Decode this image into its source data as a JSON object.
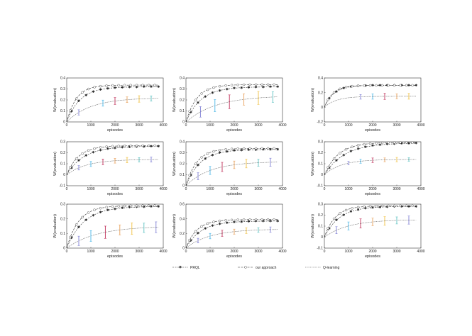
{
  "legend": {
    "items": [
      {
        "label": "PRQL",
        "marker": "star",
        "dash": "2,1.5"
      },
      {
        "label": "our approach",
        "marker": "circle",
        "dash": "3,1.5"
      },
      {
        "label": "Q-learning",
        "marker": "none",
        "dash": "0.8,1"
      }
    ]
  },
  "error_colors": [
    "#7f7fd4",
    "#4bb7e6",
    "#c0305a",
    "#e8a05a",
    "#f0c040",
    "#5ac0c0"
  ],
  "chart_data": [
    {
      "type": "line",
      "xlabel": "episodes",
      "ylabel": "W(evaluation)",
      "xlim": [
        0,
        4000
      ],
      "ylim": [
        0,
        0.4
      ],
      "xticks": [
        0,
        1000,
        2000,
        3000,
        4000
      ],
      "yticks": [
        0,
        0.1,
        0.2,
        0.3,
        0.4
      ],
      "ytick_labels": [
        "0",
        "0.1",
        "0.2",
        "0.3",
        "0.4"
      ],
      "series": [
        {
          "name": "PRQL",
          "final": 0.32,
          "rate": 0.0018
        },
        {
          "name": "our approach",
          "final": 0.335,
          "rate": 0.0025
        },
        {
          "name": "Q-learning",
          "final": 0.22,
          "rate": 0.001
        }
      ],
      "err_x": [
        500,
        1500,
        2000,
        2500,
        3000,
        3500
      ],
      "err_size": 0.03
    },
    {
      "type": "line",
      "xlabel": "episodes",
      "ylabel": "W(evaluation)",
      "xlim": [
        0,
        4000
      ],
      "ylim": [
        0,
        0.4
      ],
      "xticks": [
        0,
        1000,
        2000,
        3000,
        4000
      ],
      "yticks": [
        0,
        0.1,
        0.2,
        0.3,
        0.4
      ],
      "ytick_labels": [
        "0",
        "0.1",
        "0.2",
        "0.3",
        "0.4"
      ],
      "series": [
        {
          "name": "PRQL",
          "final": 0.32,
          "rate": 0.0016
        },
        {
          "name": "our approach",
          "final": 0.34,
          "rate": 0.0022
        },
        {
          "name": "Q-learning",
          "final": 0.24,
          "rate": 0.0008
        }
      ],
      "err_x": [
        600,
        1200,
        1800,
        2400,
        3000,
        3600
      ],
      "err_size": 0.06
    },
    {
      "type": "line",
      "xlabel": "episodes",
      "ylabel": "W(evaluation)",
      "xlim": [
        0,
        4000
      ],
      "ylim": [
        -0.2,
        0.4
      ],
      "xticks": [
        0,
        1000,
        2000,
        3000,
        4000
      ],
      "yticks": [
        -0.2,
        0,
        0.2,
        0.4
      ],
      "ytick_labels": [
        "-0.2",
        "0",
        "0.2",
        "0.4"
      ],
      "series": [
        {
          "name": "PRQL",
          "final": 0.3,
          "rate": 0.0025
        },
        {
          "name": "our approach",
          "final": 0.3,
          "rate": 0.0028
        },
        {
          "name": "Q-learning",
          "final": 0.15,
          "rate": 0.002
        }
      ],
      "err_x": [
        1500,
        2000,
        2500,
        3000,
        3500
      ],
      "err_size": 0.04
    },
    {
      "type": "line",
      "xlabel": "episodes",
      "ylabel": "W(evaluation)",
      "xlim": [
        0,
        4000
      ],
      "ylim": [
        -0.1,
        0.3
      ],
      "xticks": [
        0,
        1000,
        2000,
        3000,
        4000
      ],
      "yticks": [
        -0.1,
        0,
        0.1,
        0.2,
        0.3
      ],
      "ytick_labels": [
        "-0.1",
        "0",
        "0.1",
        "0.2",
        "0.3"
      ],
      "series": [
        {
          "name": "PRQL",
          "final": 0.26,
          "rate": 0.0014
        },
        {
          "name": "our approach",
          "final": 0.265,
          "rate": 0.002
        },
        {
          "name": "Q-learning",
          "final": 0.14,
          "rate": 0.0012
        }
      ],
      "err_x": [
        500,
        1000,
        1500,
        2000,
        2500,
        3000,
        3500
      ],
      "err_size": 0.025
    },
    {
      "type": "line",
      "xlabel": "episodes",
      "ylabel": "W(evaluation)",
      "xlim": [
        0,
        4000
      ],
      "ylim": [
        0,
        0.4
      ],
      "xticks": [
        0,
        1000,
        2000,
        3000,
        4000
      ],
      "yticks": [
        0,
        0.1,
        0.2,
        0.3,
        0.4
      ],
      "ytick_labels": [
        "0",
        "0.1",
        "0.2",
        "0.3",
        "0.4"
      ],
      "series": [
        {
          "name": "PRQL",
          "final": 0.33,
          "rate": 0.0017
        },
        {
          "name": "our approach",
          "final": 0.34,
          "rate": 0.0022
        },
        {
          "name": "Q-learning",
          "final": 0.22,
          "rate": 0.001
        }
      ],
      "err_x": [
        500,
        1000,
        1500,
        2000,
        2500,
        3000,
        3500
      ],
      "err_size": 0.04
    },
    {
      "type": "line",
      "xlabel": "episodes",
      "ylabel": "W(evaluation)",
      "xlim": [
        0,
        4000
      ],
      "ylim": [
        -0.1,
        0.3
      ],
      "xticks": [
        0,
        1000,
        2000,
        3000,
        4000
      ],
      "yticks": [
        -0.1,
        0,
        0.1,
        0.2,
        0.3
      ],
      "ytick_labels": [
        "-0.1",
        "0",
        "0.1",
        "0.2",
        "0.3"
      ],
      "series": [
        {
          "name": "PRQL",
          "final": 0.29,
          "rate": 0.0012
        },
        {
          "name": "our approach",
          "final": 0.295,
          "rate": 0.0017
        },
        {
          "name": "Q-learning",
          "final": 0.14,
          "rate": 0.0014
        }
      ],
      "err_x": [
        1000,
        1500,
        2000,
        2500,
        3000,
        3500
      ],
      "err_size": 0.02
    },
    {
      "type": "line",
      "xlabel": "episodes",
      "ylabel": "W(evaluation)",
      "xlim": [
        0,
        4000
      ],
      "ylim": [
        0,
        0.3
      ],
      "xticks": [
        0,
        1000,
        2000,
        3000,
        4000
      ],
      "yticks": [
        0,
        0.1,
        0.2,
        0.3
      ],
      "ytick_labels": [
        "0",
        "0.1",
        "0.2",
        "0.3"
      ],
      "series": [
        {
          "name": "PRQL",
          "final": 0.285,
          "rate": 0.0014
        },
        {
          "name": "our approach",
          "final": 0.29,
          "rate": 0.002
        },
        {
          "name": "Q-learning",
          "final": 0.15,
          "rate": 0.0008
        }
      ],
      "err_x": [
        500,
        1000,
        1600,
        2200,
        2700,
        3200,
        3700
      ],
      "err_size": 0.04
    },
    {
      "type": "line",
      "xlabel": "episodes",
      "ylabel": "W(evaluation)",
      "xlim": [
        0,
        4000
      ],
      "ylim": [
        0,
        0.6
      ],
      "xticks": [
        0,
        1000,
        2000,
        3000,
        4000
      ],
      "yticks": [
        0,
        0.2,
        0.4,
        0.6
      ],
      "ytick_labels": [
        "0",
        "0.2",
        "0.4",
        "0.6"
      ],
      "series": [
        {
          "name": "PRQL",
          "final": 0.37,
          "rate": 0.0016
        },
        {
          "name": "our approach",
          "final": 0.39,
          "rate": 0.0022
        },
        {
          "name": "Q-learning",
          "final": 0.26,
          "rate": 0.001
        }
      ],
      "err_x": [
        500,
        1000,
        1500,
        2000,
        2500,
        3000,
        3500
      ],
      "err_size": 0.04
    },
    {
      "type": "line",
      "xlabel": "episodes",
      "ylabel": "W(evaluation)",
      "xlim": [
        0,
        4000
      ],
      "ylim": [
        -0.1,
        0.3
      ],
      "xticks": [
        0,
        1000,
        2000,
        3000,
        4000
      ],
      "yticks": [
        -0.1,
        0,
        0.1,
        0.2,
        0.3
      ],
      "ytick_labels": [
        "-0.1",
        "0",
        "0.1",
        "0.2",
        "0.3"
      ],
      "series": [
        {
          "name": "PRQL",
          "final": 0.28,
          "rate": 0.0016
        },
        {
          "name": "our approach",
          "final": 0.285,
          "rate": 0.0022
        },
        {
          "name": "Q-learning",
          "final": 0.16,
          "rate": 0.001
        }
      ],
      "err_x": [
        500,
        1000,
        1500,
        2000,
        2500,
        3000,
        3500
      ],
      "err_size": 0.04
    }
  ]
}
